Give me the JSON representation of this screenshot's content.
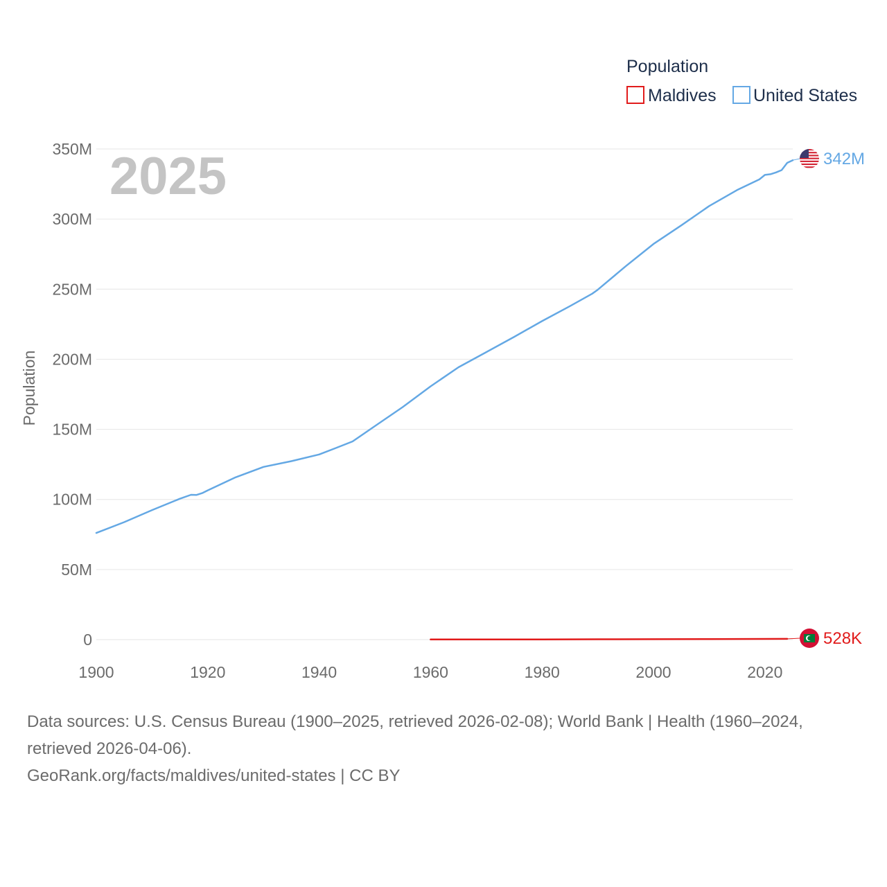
{
  "chart_data": {
    "type": "line",
    "ylabel": "Population",
    "legend_title": "Population",
    "legend_position": "top-right",
    "current_year_label": "2025",
    "xlim": [
      1900,
      2025
    ],
    "ylim": [
      0,
      350000000
    ],
    "x_ticks": [
      1900,
      1920,
      1940,
      1960,
      1980,
      2000,
      2020
    ],
    "x_tick_labels": [
      "1900",
      "1920",
      "1940",
      "1960",
      "1980",
      "2000",
      "2020"
    ],
    "y_ticks": [
      0,
      50000000,
      100000000,
      150000000,
      200000000,
      250000000,
      300000000,
      350000000
    ],
    "y_tick_labels": [
      "0",
      "50M",
      "100M",
      "150M",
      "200M",
      "250M",
      "300M",
      "350M"
    ],
    "gridlines": "horizontal",
    "series": [
      {
        "name": "United States",
        "color": "#64a8e4",
        "icon": "us-flag-icon",
        "end_label": "342M",
        "x": [
          1900,
          1905,
          1910,
          1915,
          1917,
          1918,
          1919,
          1920,
          1925,
          1930,
          1935,
          1940,
          1943,
          1946,
          1950,
          1955,
          1960,
          1965,
          1970,
          1975,
          1980,
          1985,
          1989,
          1990,
          1995,
          2000,
          2005,
          2010,
          2015,
          2019,
          2020,
          2021,
          2022,
          2023,
          2024,
          2025
        ],
        "values": [
          76100000,
          83800000,
          92400000,
          100500000,
          103300000,
          103200000,
          104500000,
          106500000,
          115800000,
          123200000,
          127300000,
          132100000,
          136700000,
          141400000,
          152300000,
          165900000,
          180700000,
          194300000,
          205100000,
          216000000,
          227200000,
          237900000,
          246800000,
          249600000,
          266300000,
          282200000,
          295500000,
          309300000,
          320700000,
          328300000,
          331500000,
          332000000,
          333300000,
          334900000,
          340100000,
          342000000
        ]
      },
      {
        "name": "Maldives",
        "color": "#e11b1b",
        "icon": "maldives-flag-icon",
        "end_label": "528K",
        "x": [
          1960,
          1970,
          1980,
          1990,
          2000,
          2010,
          2020,
          2024
        ],
        "values": [
          90000,
          115000,
          158000,
          223000,
          282000,
          368000,
          514000,
          528000
        ]
      }
    ]
  },
  "footer": {
    "line1": "Data sources: U.S. Census Bureau (1900–2025, retrieved 2026-02-08); World Bank | Health (1960–2024,",
    "line2": "retrieved 2026-04-06).",
    "line3": "GeoRank.org/facts/maldives/united-states | CC BY"
  }
}
